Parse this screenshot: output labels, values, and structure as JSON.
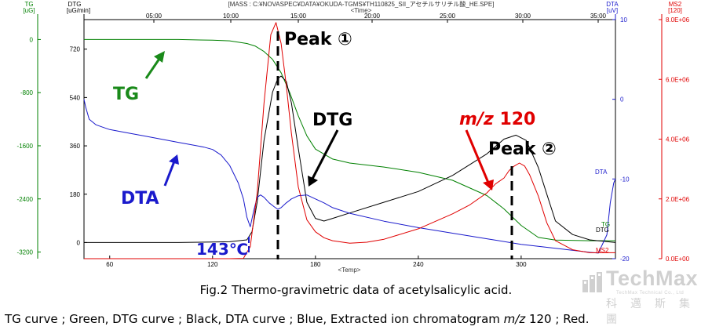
{
  "header": {
    "title": "[MASS : C:¥NOVASPEC¥DATA¥OKUDA-TGMS¥TH110825_SII_アセチルサリチル酸_HE.SPE]",
    "time_label": "<Time>",
    "temp_label": "<Temp>"
  },
  "axes": {
    "tg": {
      "name": "TG",
      "unit": "[uG]",
      "ticks": [
        "0",
        "-800",
        "-1600",
        "-2400",
        "-3200"
      ],
      "color": "#008000"
    },
    "dtg": {
      "name": "DTG",
      "unit": "[uG/min]",
      "ticks": [
        "720",
        "540",
        "360",
        "180",
        "0"
      ],
      "color": "#000000"
    },
    "dta": {
      "name": "DTA",
      "unit": "[uV]",
      "ticks": [
        "10",
        "0",
        "-10",
        "-20"
      ],
      "color": "#1a1acc"
    },
    "ms2": {
      "name": "MS2",
      "unit": "[120]",
      "ticks": [
        "8.0E+06",
        "6.0E+06",
        "4.0E+06",
        "2.0E+06",
        "0.0E+00"
      ],
      "color": "#e00000"
    },
    "time_ticks": [
      "05:00",
      "10:00",
      "15:00",
      "20:00",
      "25:00",
      "30:00",
      "35:00"
    ],
    "temp_ticks": [
      "60",
      "120",
      "180",
      "240",
      "300"
    ]
  },
  "annotations": {
    "peak1": "Peak ①",
    "peak2": "Peak ②",
    "tg": "TG",
    "dtg": "DTG",
    "dta": "DTA",
    "mz_italic": "m/z",
    "mz_value": "120",
    "temp_143": "143℃",
    "end_tg": "TG",
    "end_dtg": "DTG",
    "end_ms2": "MS2",
    "end_dta": "DTA"
  },
  "captions": {
    "figure": "Fig.2 Thermo-gravimetric data of acetylsalicylic acid.",
    "legend_part1": "TG curve ; Green, DTG curve ; Black, DTA curve ; Blue, Extracted ion chromatogram ",
    "legend_mz": "m/z",
    "legend_part2": " 120 ; Red."
  },
  "watermark": {
    "brand": "TechMax",
    "sub": "TechMax Technical Co., Ltd",
    "chinese": "科邁斯集團"
  },
  "chart_data": {
    "type": "line",
    "xlabel": "<Temp>",
    "xlim": [
      45,
      355
    ],
    "series": [
      {
        "name": "TG",
        "color": "#008000",
        "axis": "tg",
        "ylim": [
          -3300,
          300
        ],
        "x": [
          45,
          60,
          80,
          100,
          120,
          130,
          140,
          145,
          150,
          155,
          160,
          165,
          170,
          175,
          180,
          190,
          200,
          220,
          240,
          260,
          280,
          290,
          300,
          310,
          320,
          340,
          355
        ],
        "y": [
          0,
          0,
          0,
          0,
          -10,
          -20,
          -60,
          -100,
          -180,
          -300,
          -500,
          -800,
          -1150,
          -1450,
          -1650,
          -1800,
          -1860,
          -1920,
          -2000,
          -2120,
          -2350,
          -2550,
          -2800,
          -2980,
          -3020,
          -3030,
          -3030
        ]
      },
      {
        "name": "DTG",
        "color": "#000000",
        "axis": "dtg",
        "ylim": [
          -60,
          830
        ],
        "x": [
          45,
          60,
          80,
          100,
          120,
          130,
          140,
          143,
          146,
          150,
          155,
          158,
          160,
          163,
          166,
          170,
          175,
          180,
          185,
          190,
          200,
          220,
          240,
          260,
          280,
          290,
          297,
          303,
          310,
          315,
          320,
          330,
          340,
          355
        ],
        "y": [
          0,
          0,
          0,
          0,
          2,
          3,
          10,
          40,
          150,
          380,
          560,
          610,
          620,
          600,
          520,
          350,
          150,
          90,
          80,
          90,
          110,
          150,
          190,
          250,
          330,
          385,
          400,
          380,
          280,
          180,
          80,
          30,
          10,
          0
        ]
      },
      {
        "name": "DTA",
        "color": "#1a1acc",
        "axis": "dta",
        "ylim": [
          -20,
          10
        ],
        "x": [
          45,
          46,
          48,
          52,
          56,
          60,
          70,
          80,
          90,
          100,
          110,
          115,
          120,
          125,
          130,
          135,
          138,
          140,
          142,
          144,
          146,
          148,
          150,
          153,
          156,
          158,
          160,
          163,
          166,
          170,
          175,
          180,
          185,
          190,
          200,
          220,
          240,
          260,
          280,
          300,
          320,
          340,
          345,
          350,
          352,
          354,
          355
        ],
        "y": [
          0,
          -1,
          -2.5,
          -3.2,
          -3.5,
          -3.8,
          -4.2,
          -4.6,
          -5,
          -5.4,
          -5.8,
          -6,
          -6.3,
          -7,
          -8.3,
          -10.5,
          -12.5,
          -14.8,
          -16,
          -14,
          -12.3,
          -12,
          -12.3,
          -13,
          -13.5,
          -13.8,
          -13.6,
          -13,
          -12.5,
          -12.1,
          -12,
          -12.5,
          -13,
          -13.6,
          -14.3,
          -15.3,
          -16.1,
          -16.8,
          -17.5,
          -18.2,
          -18.7,
          -19.2,
          -19.3,
          -17,
          -13,
          -10.5,
          -10
        ]
      },
      {
        "name": "MS2",
        "color": "#e00000",
        "axis": "ms2",
        "ylim": [
          0,
          8000000.0
        ],
        "x": [
          45,
          100,
          130,
          138,
          142,
          146,
          150,
          154,
          157,
          160,
          163,
          166,
          170,
          175,
          180,
          185,
          190,
          200,
          210,
          220,
          240,
          260,
          270,
          280,
          285,
          290,
          293,
          296,
          299,
          302,
          305,
          310,
          315,
          320,
          330,
          340,
          345,
          350,
          355
        ],
        "y": [
          0,
          0,
          0,
          10000.0,
          400000.0,
          2200000.0,
          5200000.0,
          7500000.0,
          7900000.0,
          7200000.0,
          5800000.0,
          4200000.0,
          2400000.0,
          1300000.0,
          900000.0,
          700000.0,
          600000.0,
          520000.0,
          550000.0,
          650000.0,
          1000000.0,
          1500000.0,
          1800000.0,
          2200000.0,
          2500000.0,
          2700000.0,
          2950000.0,
          3100000.0,
          3200000.0,
          3100000.0,
          2800000.0,
          2100000.0,
          1200000.0,
          600000.0,
          300000.0,
          200000.0,
          200000.0,
          200000.0,
          200000.0
        ]
      }
    ]
  }
}
